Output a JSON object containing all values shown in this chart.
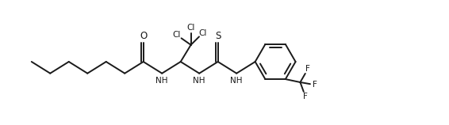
{
  "line_color": "#1a1a1a",
  "bg_color": "#ffffff",
  "line_width": 1.4,
  "font_size": 7.5,
  "fig_width": 5.66,
  "fig_height": 1.58,
  "dpi": 100,
  "xlim": [
    0,
    10.5
  ],
  "ylim": [
    0,
    3.2
  ]
}
